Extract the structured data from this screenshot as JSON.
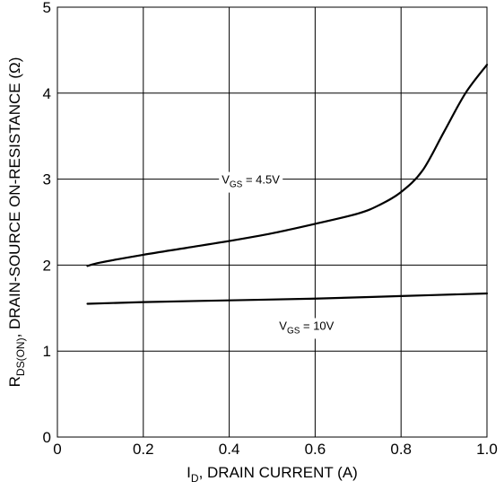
{
  "chart_data": {
    "type": "line",
    "xlabel": {
      "main": "I",
      "sub": "D",
      "rest": ", DRAIN CURRENT (A)"
    },
    "ylabel": {
      "main": "R",
      "sub": "DS(ON)",
      "rest": ", DRAIN-SOURCE ON-RESISTANCE (Ω)"
    },
    "xlim": [
      0,
      1.0
    ],
    "ylim": [
      0,
      5
    ],
    "x_ticks": [
      "0",
      "0.2",
      "0.4",
      "0.6",
      "0.8",
      "1.0"
    ],
    "y_ticks": [
      "0",
      "1",
      "2",
      "3",
      "4",
      "5"
    ],
    "x_tick_values": [
      0,
      0.2,
      0.4,
      0.6,
      0.8,
      1.0
    ],
    "y_tick_values": [
      0,
      1,
      2,
      3,
      4,
      5
    ],
    "grid": true,
    "series": [
      {
        "name": "VGS = 4.5V",
        "x": [
          0.07,
          0.1,
          0.2,
          0.3,
          0.4,
          0.5,
          0.6,
          0.7,
          0.75,
          0.8,
          0.85,
          0.9,
          0.95,
          1.0
        ],
        "y": [
          1.99,
          2.03,
          2.12,
          2.2,
          2.28,
          2.37,
          2.48,
          2.6,
          2.7,
          2.85,
          3.1,
          3.55,
          4.0,
          4.33
        ]
      },
      {
        "name": "VGS = 10V",
        "x": [
          0.07,
          0.2,
          0.4,
          0.6,
          0.8,
          1.0
        ],
        "y": [
          1.55,
          1.57,
          1.59,
          1.61,
          1.64,
          1.67
        ]
      }
    ],
    "annotations": [
      {
        "series": "VGS = 4.5V",
        "main": "V",
        "sub": "GS",
        "rest": " = 4.5V",
        "x": 0.45,
        "y": 3.0
      },
      {
        "series": "VGS = 10V",
        "main": "V",
        "sub": "GS",
        "rest": " = 10V",
        "x": 0.58,
        "y": 1.3
      }
    ]
  }
}
